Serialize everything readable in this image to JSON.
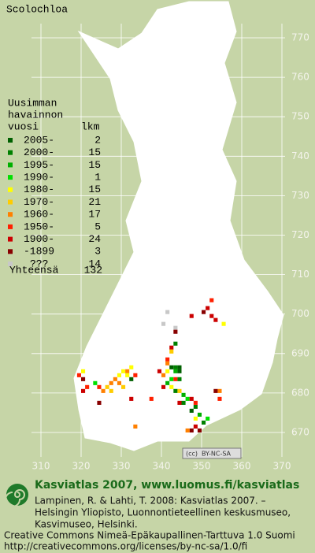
{
  "title": "Scolochloa",
  "legend": {
    "header": [
      "Uusimman",
      "havainnon",
      "vuosi"
    ],
    "count_header": "lkm",
    "rows": [
      {
        "label": "2005-",
        "count": 2,
        "color": "#006000"
      },
      {
        "label": "2000-",
        "count": 15,
        "color": "#008000"
      },
      {
        "label": "1995-",
        "count": 15,
        "color": "#00b000"
      },
      {
        "label": "1990-",
        "count": 1,
        "color": "#00e000"
      },
      {
        "label": "1980-",
        "count": 15,
        "color": "#ffff00"
      },
      {
        "label": "1970-",
        "count": 21,
        "color": "#ffcc00"
      },
      {
        "label": "1960-",
        "count": 17,
        "color": "#ff8000"
      },
      {
        "label": "1950-",
        "count": 5,
        "color": "#ff2000"
      },
      {
        "label": "1900-",
        "count": 24,
        "color": "#cc0000"
      },
      {
        "label": "-1899",
        "count": 3,
        "color": "#880000"
      },
      {
        "label": "???",
        "count": 14,
        "color": "#c8c8c8"
      }
    ],
    "total_label": "Yhteensä",
    "total": 132
  },
  "map": {
    "xlim": [
      310,
      370
    ],
    "ylim": [
      670,
      770
    ],
    "xticks": [
      310,
      320,
      330,
      340,
      350,
      360,
      370
    ],
    "yticks": [
      670,
      680,
      690,
      700,
      710,
      720,
      730,
      740,
      750,
      760,
      770
    ],
    "squares": [
      [
        352,
        703,
        7
      ],
      [
        351,
        701,
        8
      ],
      [
        350,
        700,
        9
      ],
      [
        352,
        699,
        8
      ],
      [
        353,
        698,
        8
      ],
      [
        355,
        697,
        4
      ],
      [
        347,
        699,
        8
      ],
      [
        341,
        700,
        10
      ],
      [
        340,
        697,
        10
      ],
      [
        343,
        696,
        10
      ],
      [
        343,
        695,
        9
      ],
      [
        343,
        692,
        1
      ],
      [
        342,
        691,
        8
      ],
      [
        342,
        690,
        5
      ],
      [
        341,
        688,
        7
      ],
      [
        341,
        687,
        6
      ],
      [
        342,
        686,
        0
      ],
      [
        343,
        686,
        1
      ],
      [
        343,
        685,
        2
      ],
      [
        344,
        685,
        0
      ],
      [
        344,
        686,
        0
      ],
      [
        341,
        685,
        4
      ],
      [
        340,
        684,
        6
      ],
      [
        342,
        683,
        3
      ],
      [
        343,
        683,
        7
      ],
      [
        344,
        683,
        1
      ],
      [
        341,
        682,
        2
      ],
      [
        340,
        681,
        8
      ],
      [
        342,
        681,
        4
      ],
      [
        343,
        680,
        1
      ],
      [
        344,
        680,
        5
      ],
      [
        345,
        679,
        2
      ],
      [
        346,
        678,
        3
      ],
      [
        347,
        678,
        8
      ],
      [
        345,
        677,
        1
      ],
      [
        344,
        677,
        8
      ],
      [
        348,
        676,
        1
      ],
      [
        347,
        675,
        0
      ],
      [
        349,
        674,
        2
      ],
      [
        348,
        673,
        4
      ],
      [
        350,
        672,
        1
      ],
      [
        348,
        671,
        8
      ],
      [
        347,
        670,
        9
      ],
      [
        346,
        670,
        6
      ],
      [
        349,
        670,
        9
      ],
      [
        351,
        673,
        3
      ],
      [
        320,
        685,
        4
      ],
      [
        319,
        684,
        7
      ],
      [
        320,
        683,
        9
      ],
      [
        321,
        681,
        7
      ],
      [
        320,
        680,
        8
      ],
      [
        323,
        682,
        3
      ],
      [
        324,
        681,
        7
      ],
      [
        325,
        680,
        6
      ],
      [
        326,
        681,
        5
      ],
      [
        327,
        682,
        6
      ],
      [
        327,
        680,
        5
      ],
      [
        328,
        683,
        6
      ],
      [
        329,
        684,
        4
      ],
      [
        329,
        682,
        6
      ],
      [
        330,
        685,
        4
      ],
      [
        331,
        685,
        6
      ],
      [
        332,
        686,
        4
      ],
      [
        331,
        684,
        4
      ],
      [
        332,
        683,
        0
      ],
      [
        330,
        681,
        5
      ],
      [
        333,
        684,
        7
      ],
      [
        339,
        685,
        8
      ],
      [
        354,
        680,
        6
      ],
      [
        354,
        678,
        7
      ],
      [
        332,
        678,
        8
      ],
      [
        337,
        678,
        7
      ],
      [
        353,
        680,
        9
      ],
      [
        333,
        671,
        6
      ],
      [
        348,
        677,
        7
      ],
      [
        324,
        677,
        9
      ]
    ]
  },
  "badge": {
    "cc": "(cc)",
    "text": "BY-NC-SA"
  },
  "footer": {
    "heading": "Kasviatlas 2007, www.luomus.fi/kasviatlas",
    "citation": [
      "Lampinen, R. & Lahti, T. 2008: Kasviatlas 2007. –",
      "Helsingin Yliopisto, Luonnontieteellinen keskusmuseo,",
      "Kasvimuseo, Helsinki."
    ],
    "license": [
      "Creative Commons Nimeä-Epäkaupallinen-Tarttuva 1.0 Suomi",
      "http://creativecommons.org/licenses/by-nc-sa/1.0/fi"
    ]
  }
}
